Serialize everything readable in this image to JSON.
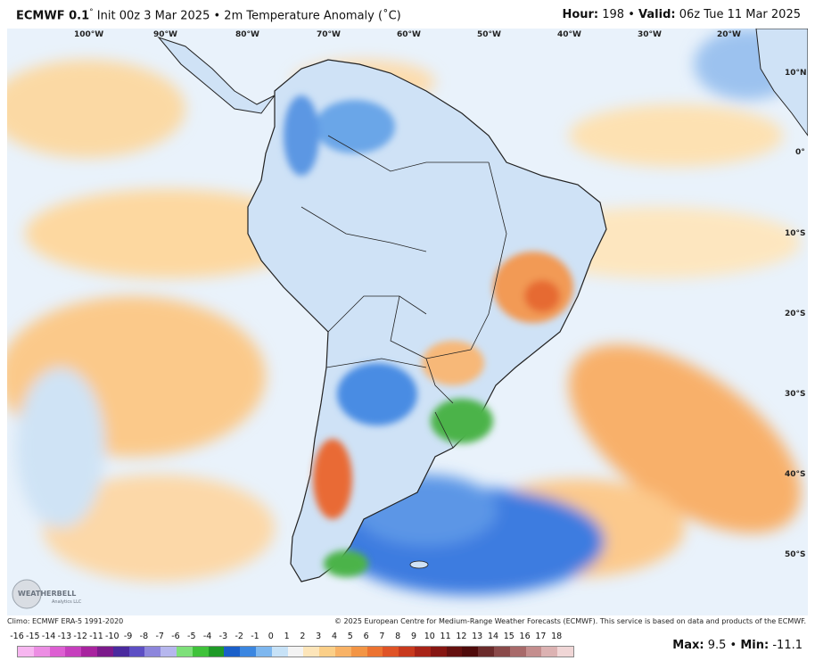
{
  "header": {
    "model": "ECMWF 0.1",
    "degree": "°",
    "init": "Init 00z 3 Mar 2025",
    "bullet": "•",
    "field": "2m Temperature Anomaly (˚C)",
    "hour_label": "Hour:",
    "hour_value": "198",
    "valid_label": "Valid:",
    "valid_value": "06z Tue 11 Mar 2025"
  },
  "map": {
    "lon_labels": [
      "100°W",
      "90°W",
      "80°W",
      "70°W",
      "60°W",
      "50°W",
      "40°W",
      "30°W",
      "20°W"
    ],
    "lat_labels": [
      "10°N",
      "0°",
      "10°S",
      "20°S",
      "30°S",
      "40°S",
      "50°S"
    ],
    "logo_text": "WEATHERBELL",
    "logo_sub": "Analytics LLC"
  },
  "footer": {
    "climo": "Climo: ECMWF ERA-5 1991-2020",
    "copyright": "© 2025 European Centre for Medium-Range Weather Forecasts (ECMWF). This service is based on data and products of the ECMWF.",
    "max_label": "Max:",
    "max_value": "9.5",
    "bullet": "•",
    "min_label": "Min:",
    "min_value": "-11.1"
  },
  "scale": {
    "labels": [
      "-16",
      "-15",
      "-14",
      "-13",
      "-12",
      "-11",
      "-10",
      "-9",
      "-8",
      "-7",
      "-6",
      "-5",
      "-4",
      "-3",
      "-2",
      "-1",
      "0",
      "1",
      "2",
      "3",
      "4",
      "5",
      "6",
      "7",
      "8",
      "9",
      "10",
      "11",
      "12",
      "13",
      "14",
      "15",
      "16",
      "17",
      "18"
    ],
    "colors": [
      "#f7b6f0",
      "#ec8de3",
      "#dd5fd2",
      "#c63fbd",
      "#a8239f",
      "#7c1a8b",
      "#4a2a9e",
      "#5d4fc4",
      "#8d86dc",
      "#b6b7ee",
      "#7ee07a",
      "#3fc23a",
      "#1f9a27",
      "#1a5fc9",
      "#3b86e0",
      "#7eb7ef",
      "#c7e2f7",
      "#f3f3f3",
      "#fde5b9",
      "#fbcf88",
      "#f8b266",
      "#f39545",
      "#ec7331",
      "#df5326",
      "#c8391d",
      "#a82317",
      "#861612",
      "#65100f",
      "#4f0b0b",
      "#6b2b2b",
      "#8a4a4a",
      "#a86a6a",
      "#c48e8e",
      "#dcb2b2",
      "#f0d6d6"
    ]
  }
}
